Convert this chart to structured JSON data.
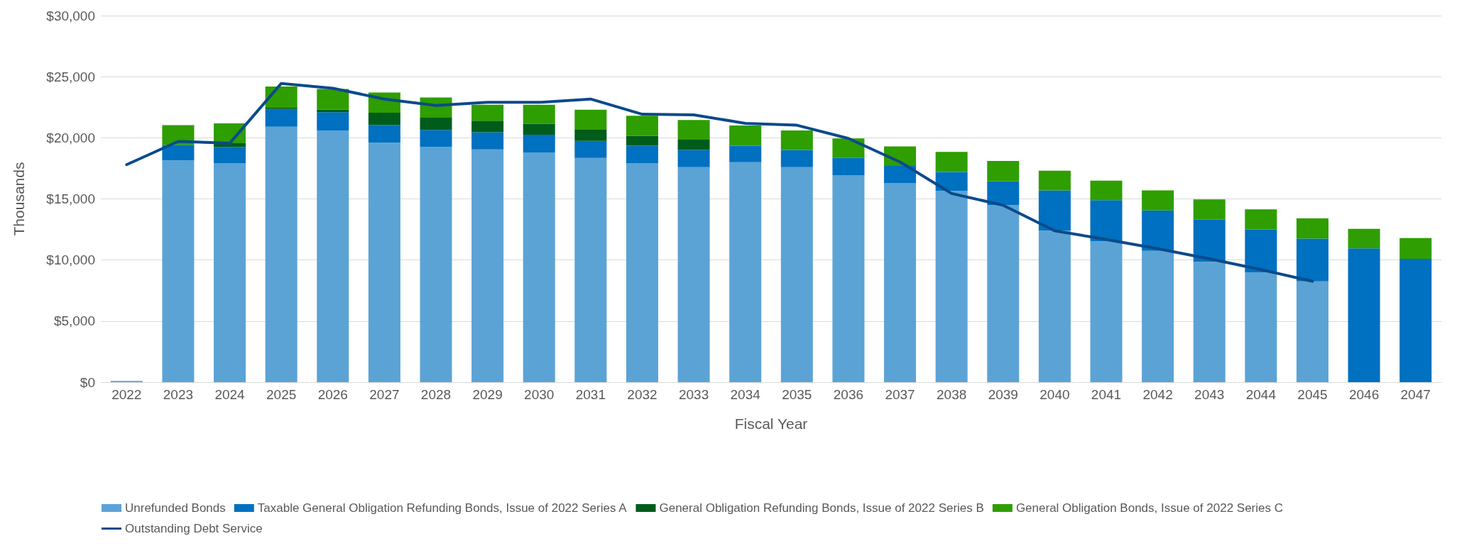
{
  "chart_data": {
    "type": "bar",
    "stacked": true,
    "xlabel": "Fiscal Year",
    "ylabel": "Thousands",
    "categories": [
      "2022",
      "2023",
      "2024",
      "2025",
      "2026",
      "2027",
      "2028",
      "2029",
      "2030",
      "2031",
      "2032",
      "2033",
      "2034",
      "2035",
      "2036",
      "2037",
      "2038",
      "2039",
      "2040",
      "2041",
      "2042",
      "2043",
      "2044",
      "2045",
      "2046",
      "2047"
    ],
    "series": [
      {
        "name": "Unrefunded Bonds",
        "color": "#5ba3d5",
        "values": [
          100,
          18150,
          17900,
          20900,
          20600,
          19600,
          19250,
          19050,
          18800,
          18350,
          17900,
          17600,
          18000,
          17600,
          16950,
          16300,
          15650,
          14500,
          12400,
          11550,
          10750,
          9850,
          9000,
          8250,
          null,
          null
        ]
      },
      {
        "name": "Taxable General Obligation Refunding Bonds, Issue of 2022 Series A",
        "color": "#0070c0",
        "values": [
          null,
          1280,
          1350,
          1450,
          1500,
          1450,
          1400,
          1400,
          1450,
          1400,
          1450,
          1400,
          1350,
          1400,
          1400,
          1400,
          1550,
          1950,
          3300,
          3350,
          3300,
          3450,
          3500,
          3500,
          10950,
          10100
        ]
      },
      {
        "name": "General Obligation Refunding Bonds, Issue of 2022 Series B",
        "color": "#005c1a",
        "values": [
          null,
          null,
          300,
          150,
          200,
          1000,
          1000,
          950,
          900,
          950,
          800,
          850,
          null,
          null,
          null,
          null,
          null,
          null,
          null,
          null,
          null,
          null,
          null,
          null,
          null,
          null
        ]
      },
      {
        "name": "General Obligation Bonds, Issue of 2022 Series C",
        "color": "#2e9e00",
        "values": [
          null,
          1610,
          1630,
          1700,
          1700,
          1650,
          1650,
          1300,
          1550,
          1600,
          1650,
          1600,
          1650,
          1600,
          1600,
          1600,
          1650,
          1650,
          1600,
          1600,
          1650,
          1650,
          1650,
          1650,
          1600,
          1700
        ]
      },
      {
        "name": "Outstanding Debt Service",
        "type": "line",
        "color": "#0b4a8a",
        "marker": "none",
        "line_style": "solid",
        "values": [
          17800,
          19700,
          19550,
          24450,
          24050,
          23170,
          22650,
          22900,
          22900,
          23170,
          21930,
          21880,
          21180,
          21030,
          19950,
          18020,
          15440,
          14480,
          12390,
          11680,
          10920,
          10100,
          9210,
          8250,
          null,
          null
        ]
      }
    ],
    "ylim": [
      0,
      30000
    ],
    "yticks": [
      {
        "value": 0,
        "label": "$0"
      },
      {
        "value": 5000,
        "label": "$5,000"
      },
      {
        "value": 10000,
        "label": "$10,000"
      },
      {
        "value": 15000,
        "label": "$15,000"
      },
      {
        "value": 20000,
        "label": "$20,000"
      },
      {
        "value": 25000,
        "label": "$25,000"
      },
      {
        "value": 30000,
        "label": "$30,000"
      }
    ],
    "grid": "y",
    "legend": "bottom"
  }
}
